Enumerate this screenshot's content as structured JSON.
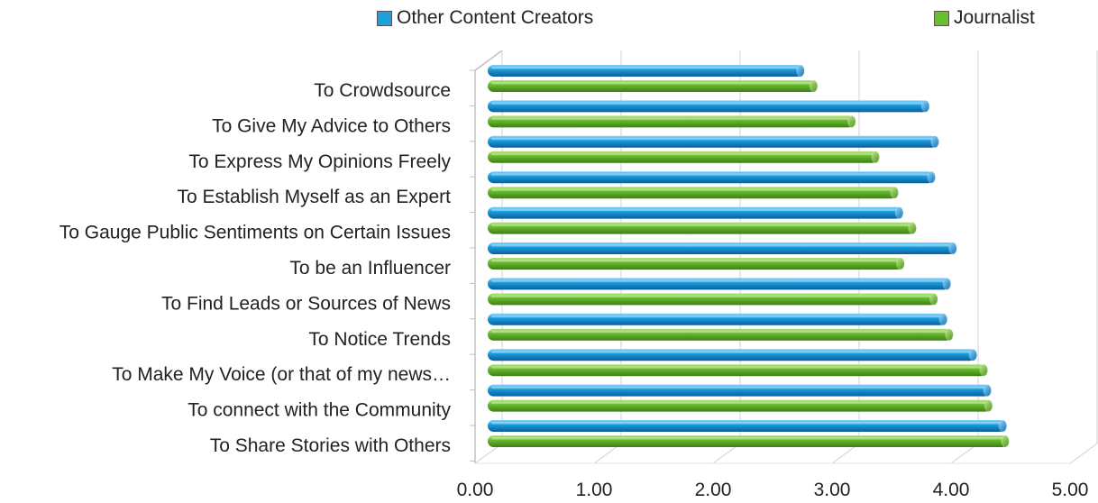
{
  "chart_data": {
    "type": "bar",
    "orientation": "horizontal",
    "title": "",
    "xlabel": "",
    "ylabel": "",
    "xlim": [
      0,
      5
    ],
    "x_ticks": [
      "0.00",
      "1.00",
      "2.00",
      "3.00",
      "4.00",
      "5.00"
    ],
    "grid": true,
    "legend_position": "top",
    "categories": [
      "To Crowdsource",
      "To Give My Advice to Others",
      "To Express My Opinions Freely",
      "To Establish Myself as an Expert",
      "To Gauge Public Sentiments on Certain Issues",
      "To be an Influencer",
      "To Find Leads or Sources of News",
      "To Notice Trends",
      "To Make My Voice (or that of my news…",
      "To connect with the Community",
      "To Share Stories with Others"
    ],
    "series": [
      {
        "name": "Other Content Creators",
        "color": "#1ba1e2",
        "values": [
          2.65,
          3.7,
          3.78,
          3.75,
          3.48,
          3.93,
          3.88,
          3.85,
          4.1,
          4.22,
          4.35
        ]
      },
      {
        "name": "Journalist",
        "color": "#6abf2e",
        "values": [
          2.76,
          3.08,
          3.28,
          3.44,
          3.59,
          3.49,
          3.77,
          3.9,
          4.19,
          4.23,
          4.37
        ]
      }
    ]
  }
}
